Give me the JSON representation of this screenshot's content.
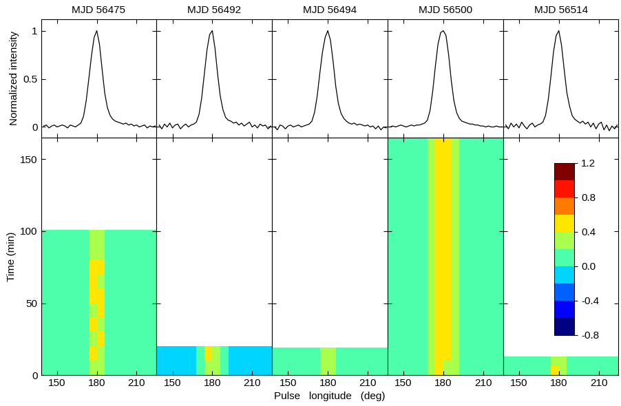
{
  "chart_data": {
    "type": "heatmap",
    "xlabel": "Pulse   longitude   (deg)",
    "profile_ylabel": "Normalized intensity",
    "ylabel": "Time (min)",
    "xlim": [
      138,
      225
    ],
    "xticks": [
      150,
      180,
      210
    ],
    "profile_ylim": [
      -0.11,
      1.12
    ],
    "profile_yticks": [
      0,
      0.5,
      1
    ],
    "ylim": [
      0,
      165
    ],
    "yticks": [
      0,
      50,
      100,
      150
    ],
    "profile_x": [
      140,
      142,
      144,
      146,
      148,
      150,
      152,
      154,
      156,
      158,
      160,
      162,
      164,
      166,
      168,
      170,
      172,
      174,
      176,
      178,
      180,
      182,
      184,
      186,
      188,
      190,
      192,
      194,
      196,
      198,
      200,
      202,
      204,
      206,
      208,
      210,
      212,
      214,
      216,
      218,
      220,
      222,
      224
    ],
    "lon_edges": [
      138,
      144,
      150,
      156,
      162,
      168,
      174,
      180,
      186,
      192,
      198,
      204,
      210,
      216,
      225
    ],
    "colorbar": {
      "boundaries": [
        -0.8,
        -0.6,
        -0.4,
        -0.2,
        0.0,
        0.2,
        0.4,
        0.6,
        0.8,
        1.0,
        1.2
      ],
      "ticks": [
        -0.8,
        -0.4,
        0.0,
        0.4,
        0.8,
        1.2
      ]
    },
    "panels": [
      {
        "title": "MJD 56475",
        "profile": [
          0.01,
          0.02,
          -0.01,
          0.01,
          0.02,
          0.0,
          0.01,
          0.02,
          0.01,
          -0.01,
          0.02,
          0.01,
          0.0,
          0.02,
          0.04,
          0.11,
          0.27,
          0.5,
          0.74,
          0.93,
          1.0,
          0.86,
          0.6,
          0.35,
          0.2,
          0.12,
          0.08,
          0.06,
          0.05,
          0.04,
          0.03,
          0.04,
          0.02,
          0.03,
          0.01,
          0.02,
          0.0,
          0.01,
          0.02,
          -0.01,
          0.01,
          0.0,
          0.01
        ],
        "time_edges": [
          0,
          10,
          20,
          30,
          40,
          50,
          60,
          70,
          80,
          90,
          101
        ],
        "cells": [
          [
            0.03,
            0.01,
            0.04,
            0.02,
            0.05,
            0.16,
            0.38,
            0.35,
            0.12,
            0.03,
            0.02,
            0.04,
            0.01,
            0.03
          ],
          [
            0.01,
            0.03,
            0.02,
            0.04,
            0.03,
            0.13,
            0.41,
            0.37,
            0.1,
            0.05,
            0.03,
            0.02,
            0.02,
            0.01
          ],
          [
            0.04,
            0.02,
            0.01,
            0.03,
            0.06,
            0.15,
            0.36,
            0.4,
            0.14,
            0.04,
            0.01,
            0.03,
            0.04,
            0.02
          ],
          [
            0.02,
            0.04,
            0.03,
            0.01,
            0.04,
            0.12,
            0.44,
            0.39,
            0.11,
            0.02,
            0.04,
            0.02,
            0.03,
            0.04
          ],
          [
            0.03,
            0.02,
            0.05,
            0.02,
            0.03,
            0.14,
            0.39,
            0.42,
            0.13,
            0.03,
            0.02,
            0.01,
            0.02,
            0.03
          ],
          [
            0.01,
            0.03,
            0.02,
            0.04,
            0.05,
            0.17,
            0.46,
            0.41,
            0.12,
            0.04,
            0.03,
            0.02,
            0.01,
            0.02
          ],
          [
            0.02,
            0.01,
            0.03,
            0.03,
            0.02,
            0.13,
            0.42,
            0.38,
            0.1,
            0.03,
            0.02,
            0.04,
            0.03,
            0.01
          ],
          [
            0.04,
            0.03,
            0.02,
            0.01,
            0.04,
            0.15,
            0.4,
            0.43,
            0.14,
            0.05,
            0.01,
            0.03,
            0.02,
            0.04
          ],
          [
            0.03,
            0.02,
            0.04,
            0.03,
            0.03,
            0.14,
            0.37,
            0.36,
            0.11,
            0.02,
            0.03,
            0.02,
            0.04,
            0.02
          ],
          [
            0.02,
            0.04,
            0.01,
            0.02,
            0.04,
            0.12,
            0.35,
            0.33,
            0.1,
            0.03,
            0.02,
            0.03,
            0.01,
            0.03
          ]
        ]
      },
      {
        "title": "MJD 56492",
        "profile": [
          0.02,
          -0.02,
          0.03,
          0.0,
          0.04,
          -0.01,
          0.02,
          0.03,
          -0.02,
          0.01,
          0.03,
          0.0,
          0.02,
          0.03,
          0.05,
          0.13,
          0.3,
          0.55,
          0.8,
          0.96,
          1.0,
          0.82,
          0.55,
          0.32,
          0.18,
          0.1,
          0.07,
          0.06,
          0.04,
          0.05,
          0.02,
          0.04,
          0.01,
          0.03,
          0.05,
          0.0,
          0.02,
          -0.01,
          0.03,
          0.01,
          0.02,
          -0.02,
          0.01
        ],
        "time_edges": [
          0,
          10,
          20
        ],
        "cells": [
          [
            -0.15,
            -0.18,
            -0.14,
            -0.12,
            -0.08,
            0.06,
            0.38,
            0.34,
            0.04,
            -0.1,
            -0.14,
            -0.16,
            -0.18,
            -0.15
          ],
          [
            -0.12,
            -0.16,
            -0.17,
            -0.13,
            -0.09,
            0.08,
            0.42,
            0.37,
            0.06,
            -0.08,
            -0.13,
            -0.15,
            -0.14,
            -0.12
          ]
        ]
      },
      {
        "title": "MJD 56494",
        "profile": [
          0.0,
          -0.03,
          0.02,
          0.01,
          -0.02,
          0.01,
          0.02,
          0.0,
          0.01,
          0.02,
          0.0,
          0.01,
          0.02,
          0.03,
          0.06,
          0.15,
          0.32,
          0.56,
          0.78,
          0.93,
          1.0,
          0.9,
          0.68,
          0.42,
          0.24,
          0.14,
          0.09,
          0.06,
          0.04,
          0.03,
          0.04,
          0.02,
          0.03,
          0.02,
          0.01,
          0.02,
          0.0,
          0.01,
          -0.02,
          0.01,
          -0.03,
          0.0,
          -0.01
        ],
        "time_edges": [
          0,
          10,
          19
        ],
        "cells": [
          [
            0.02,
            0.03,
            0.01,
            0.02,
            0.04,
            0.18,
            0.36,
            0.34,
            0.15,
            0.03,
            0.02,
            0.01,
            0.03,
            0.02
          ],
          [
            0.04,
            0.01,
            0.03,
            0.02,
            0.03,
            0.16,
            0.33,
            0.35,
            0.13,
            0.04,
            0.03,
            0.02,
            0.01,
            0.03
          ]
        ]
      },
      {
        "title": "MJD 56500",
        "profile": [
          0.0,
          0.01,
          0.0,
          0.01,
          0.02,
          0.01,
          0.0,
          0.01,
          0.02,
          0.01,
          0.02,
          0.02,
          0.03,
          0.04,
          0.07,
          0.17,
          0.37,
          0.63,
          0.86,
          0.98,
          1.0,
          0.95,
          0.75,
          0.48,
          0.27,
          0.15,
          0.09,
          0.06,
          0.05,
          0.04,
          0.03,
          0.03,
          0.02,
          0.02,
          0.01,
          0.01,
          0.0,
          0.01,
          0.0,
          0.0,
          0.01,
          0.0,
          0.0
        ],
        "time_edges": [
          0,
          10,
          20,
          30,
          40,
          50,
          60,
          70,
          80,
          90,
          100,
          110,
          120,
          130,
          140,
          150,
          160,
          165
        ],
        "cells": [
          [
            0.03,
            0.02,
            0.04,
            0.03,
            0.05,
            0.22,
            0.4,
            0.38,
            0.2,
            0.05,
            0.03,
            0.02,
            0.04,
            0.03
          ],
          [
            0.02,
            0.04,
            0.03,
            0.02,
            0.06,
            0.25,
            0.43,
            0.41,
            0.22,
            0.06,
            0.02,
            0.03,
            0.02,
            0.04
          ],
          [
            0.04,
            0.03,
            0.02,
            0.04,
            0.05,
            0.24,
            0.47,
            0.45,
            0.21,
            0.04,
            0.04,
            0.02,
            0.03,
            0.02
          ],
          [
            0.03,
            0.02,
            0.03,
            0.02,
            0.07,
            0.27,
            0.5,
            0.46,
            0.24,
            0.06,
            0.03,
            0.04,
            0.02,
            0.03
          ],
          [
            0.02,
            0.03,
            0.04,
            0.03,
            0.05,
            0.23,
            0.44,
            0.48,
            0.22,
            0.05,
            0.02,
            0.03,
            0.04,
            0.02
          ],
          [
            0.04,
            0.02,
            0.02,
            0.04,
            0.06,
            0.26,
            0.46,
            0.43,
            0.23,
            0.07,
            0.03,
            0.02,
            0.03,
            0.03
          ],
          [
            0.03,
            0.04,
            0.03,
            0.02,
            0.05,
            0.24,
            0.48,
            0.47,
            0.25,
            0.05,
            0.04,
            0.03,
            0.02,
            0.04
          ],
          [
            0.02,
            0.03,
            0.04,
            0.03,
            0.06,
            0.22,
            0.45,
            0.44,
            0.21,
            0.06,
            0.02,
            0.04,
            0.03,
            0.02
          ],
          [
            0.04,
            0.02,
            0.03,
            0.04,
            0.05,
            0.25,
            0.52,
            0.49,
            0.24,
            0.05,
            0.03,
            0.02,
            0.04,
            0.03
          ],
          [
            0.03,
            0.03,
            0.02,
            0.03,
            0.07,
            0.23,
            0.47,
            0.45,
            0.22,
            0.04,
            0.04,
            0.03,
            0.02,
            0.02
          ],
          [
            0.02,
            0.04,
            0.03,
            0.02,
            0.05,
            0.24,
            0.44,
            0.46,
            0.23,
            0.06,
            0.03,
            0.02,
            0.03,
            0.04
          ],
          [
            0.04,
            0.02,
            0.04,
            0.03,
            0.06,
            0.26,
            0.49,
            0.47,
            0.25,
            0.05,
            0.02,
            0.04,
            0.02,
            0.03
          ],
          [
            0.03,
            0.03,
            0.02,
            0.04,
            0.05,
            0.22,
            0.43,
            0.42,
            0.21,
            0.04,
            0.03,
            0.03,
            0.04,
            0.02
          ],
          [
            0.02,
            0.04,
            0.03,
            0.02,
            0.06,
            0.25,
            0.46,
            0.44,
            0.22,
            0.06,
            0.04,
            0.02,
            0.03,
            0.03
          ],
          [
            0.04,
            0.02,
            0.03,
            0.03,
            0.05,
            0.23,
            0.45,
            0.47,
            0.24,
            0.05,
            0.02,
            0.03,
            0.02,
            0.04
          ],
          [
            0.03,
            0.03,
            0.04,
            0.02,
            0.06,
            0.24,
            0.48,
            0.45,
            0.23,
            0.06,
            0.03,
            0.04,
            0.03,
            0.02
          ],
          [
            0.02,
            0.04,
            0.02,
            0.03,
            0.05,
            0.22,
            0.42,
            0.41,
            0.2,
            0.04,
            0.04,
            0.02,
            0.04,
            0.03
          ]
        ]
      },
      {
        "title": "MJD 56514",
        "profile": [
          0.02,
          -0.02,
          0.04,
          0.0,
          0.03,
          -0.01,
          0.05,
          0.01,
          -0.02,
          0.02,
          0.04,
          0.0,
          0.02,
          0.03,
          0.05,
          0.12,
          0.28,
          0.52,
          0.78,
          0.95,
          1.0,
          0.85,
          0.6,
          0.36,
          0.22,
          0.12,
          0.08,
          0.06,
          0.04,
          0.06,
          0.03,
          0.05,
          0.0,
          0.04,
          -0.02,
          0.03,
          0.05,
          -0.03,
          0.02,
          -0.04,
          0.01,
          -0.02,
          0.02
        ],
        "time_edges": [
          0,
          7,
          13
        ],
        "cells": [
          [
            0.01,
            0.03,
            0.02,
            0.04,
            0.03,
            0.12,
            0.4,
            0.36,
            0.09,
            0.02,
            0.03,
            0.01,
            0.04,
            0.02
          ],
          [
            0.03,
            0.02,
            0.04,
            0.01,
            0.02,
            0.1,
            0.37,
            0.39,
            0.11,
            0.04,
            0.02,
            0.03,
            0.02,
            0.01
          ]
        ]
      }
    ]
  }
}
